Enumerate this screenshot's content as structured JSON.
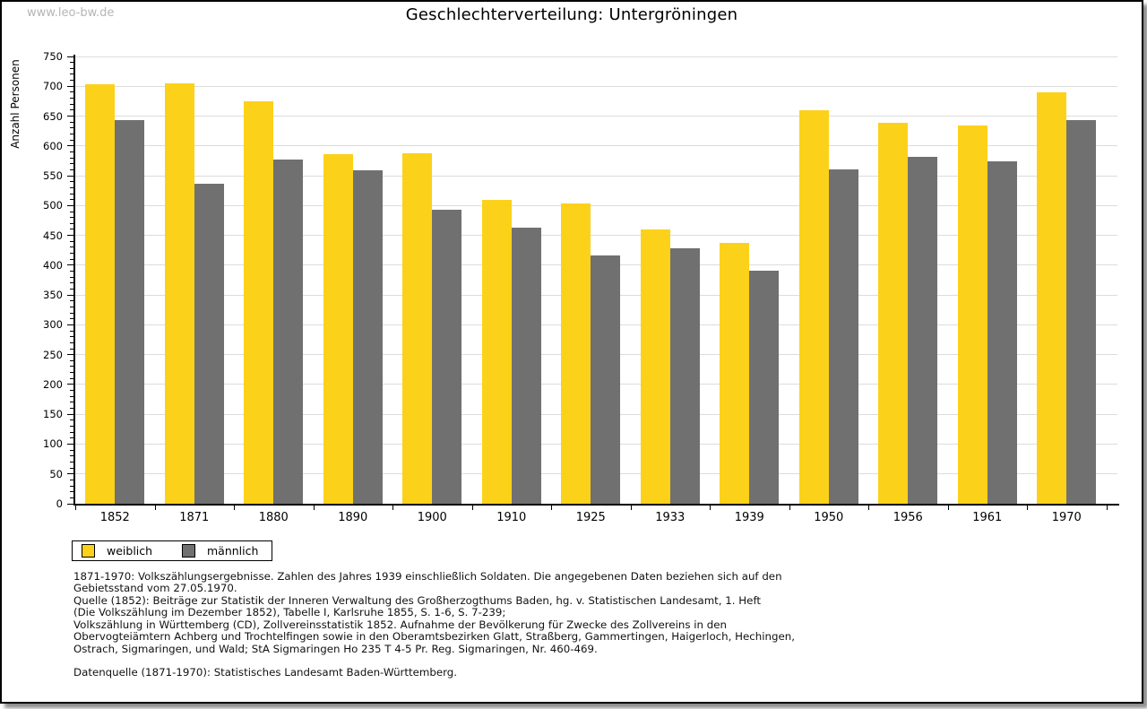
{
  "page": {
    "watermark": "www.leo-bw.de"
  },
  "chart_data": {
    "type": "bar",
    "title": "Geschlechterverteilung: Untergröningen",
    "xlabel": "",
    "ylabel": "Anzahl Personen",
    "ylim": [
      0,
      750
    ],
    "ytick_step": 50,
    "ytick_minor_step": 10,
    "grid": true,
    "legend_position": "bottom-left-below-plot",
    "categories": [
      "1852",
      "1871",
      "1880",
      "1890",
      "1900",
      "1910",
      "1925",
      "1933",
      "1939",
      "1950",
      "1956",
      "1961",
      "1970"
    ],
    "series": [
      {
        "name": "weiblich",
        "color": "#FCD11A",
        "values": [
          703,
          705,
          675,
          586,
          588,
          510,
          504,
          460,
          437,
          660,
          639,
          634,
          690
        ]
      },
      {
        "name": "männlich",
        "color": "#707070",
        "values": [
          643,
          537,
          577,
          559,
          493,
          463,
          417,
          429,
          391,
          561,
          582,
          574,
          644
        ]
      }
    ]
  },
  "footnotes": {
    "lines": [
      "1871-1970: Volkszählungsergebnisse. Zahlen des Jahres 1939 einschließlich Soldaten. Die angegebenen Daten beziehen sich auf den",
      "Gebietsstand vom 27.05.1970.",
      "Quelle (1852): Beiträge zur Statistik der Inneren Verwaltung des Großherzogthums Baden, hg. v. Statistischen Landesamt, 1. Heft",
      "(Die Volkszählung im Dezember 1852), Tabelle I, Karlsruhe 1855, S. 1-6, S. 7-239;",
      "Volkszählung in Württemberg (CD), Zollvereinsstatistik 1852. Aufnahme der Bevölkerung für Zwecke des Zollvereins in den",
      "Obervogteiämtern Achberg und Trochtelfingen sowie in den Oberamtsbezirken Glatt, Straßberg, Gammertingen, Haigerloch, Hechingen,",
      "Ostrach, Sigmaringen, und Wald; StA Sigmaringen Ho 235 T 4-5 Pr. Reg. Sigmaringen, Nr. 460-469."
    ],
    "datasource": "Datenquelle (1871-1970): Statistisches Landesamt Baden-Württemberg."
  },
  "colors": {
    "female_bar": "#FCD11A",
    "male_bar": "#707070",
    "gridline": "#DCDCDC",
    "axis": "#000000",
    "watermark_text": "#B5B5B5"
  }
}
